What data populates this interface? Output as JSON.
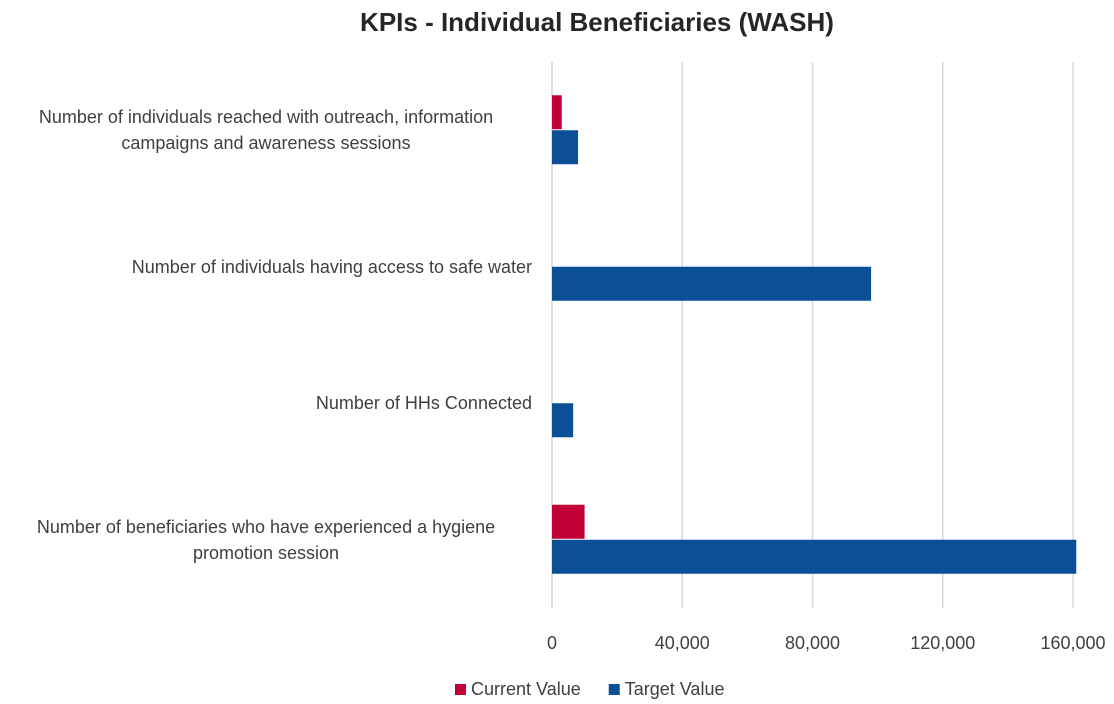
{
  "chart_data": {
    "type": "hbar",
    "title": "KPIs - Individual Beneficiaries (WASH)",
    "categories": [
      "Number of individuals reached with outreach, information campaigns and awareness sessions",
      "Number of individuals having access to safe water",
      "Number of HHs Connected",
      "Number of beneficiaries who have experienced a hygiene promotion session"
    ],
    "series": [
      {
        "name": "Current Value",
        "color": "#c00037",
        "values": [
          3000,
          0,
          0,
          10000
        ]
      },
      {
        "name": "Target Value",
        "color": "#0b4f96",
        "values": [
          8000,
          98000,
          6500,
          161000
        ]
      }
    ],
    "xlim": [
      0,
      160000
    ],
    "xticks": [
      0,
      {
        "value": 40000,
        "label": "40,000"
      },
      {
        "value": 80000,
        "label": "80,000"
      },
      {
        "value": 120000,
        "label": "120,000"
      },
      {
        "value": 160000,
        "label": "160,000"
      }
    ],
    "grid": true,
    "legend": "bottom"
  }
}
